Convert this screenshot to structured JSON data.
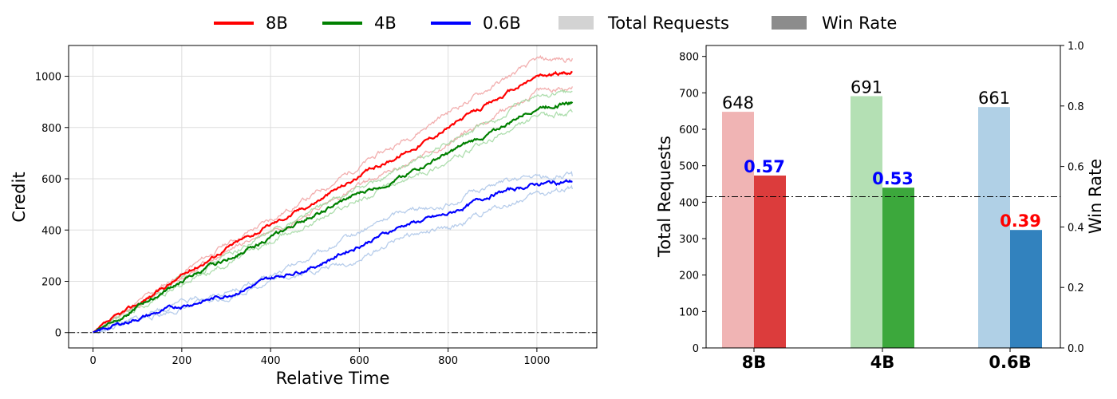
{
  "legend": {
    "placement": "top-center",
    "items": [
      {
        "label": "8B",
        "kind": "line",
        "color": "#ff0000"
      },
      {
        "label": "4B",
        "kind": "line",
        "color": "#008000"
      },
      {
        "label": "0.6B",
        "kind": "line",
        "color": "#0000ff"
      },
      {
        "label": "Total Requests",
        "kind": "patch",
        "color": "#d3d3d3"
      },
      {
        "label": "Win Rate",
        "kind": "patch",
        "color": "#8c8c8c"
      }
    ]
  },
  "chart_data": [
    {
      "type": "line",
      "xlabel": "Relative Time",
      "ylabel": "Credit",
      "xlim": [
        -55,
        1135
      ],
      "ylim": [
        -60,
        1120
      ],
      "xticks": [
        "0",
        "200",
        "400",
        "600",
        "800",
        "1000"
      ],
      "yticks": [
        "0",
        "200",
        "400",
        "600",
        "800",
        "1000"
      ],
      "grid": true,
      "reference_line": {
        "y": 0,
        "style": "dash-dot"
      },
      "series": [
        {
          "name": "8B",
          "color": "#ff0000",
          "band_color": "#f0a0a0",
          "x": [
            0,
            100,
            200,
            300,
            400,
            500,
            600,
            700,
            800,
            900,
            1000,
            1080
          ],
          "mean": [
            0,
            110,
            220,
            330,
            420,
            510,
            610,
            700,
            800,
            900,
            1000,
            1015
          ],
          "upper": [
            0,
            115,
            230,
            345,
            440,
            540,
            650,
            750,
            860,
            960,
            1060,
            1070
          ],
          "lower": [
            0,
            105,
            210,
            315,
            400,
            480,
            570,
            650,
            740,
            840,
            940,
            960
          ]
        },
        {
          "name": "4B",
          "color": "#008000",
          "band_color": "#a0d8a0",
          "x": [
            0,
            100,
            200,
            300,
            400,
            500,
            600,
            700,
            800,
            900,
            1000,
            1080
          ],
          "mean": [
            0,
            100,
            200,
            285,
            370,
            460,
            540,
            610,
            700,
            780,
            880,
            900
          ],
          "upper": [
            0,
            105,
            210,
            300,
            390,
            480,
            560,
            640,
            740,
            820,
            920,
            940
          ],
          "lower": [
            0,
            95,
            190,
            270,
            350,
            440,
            520,
            590,
            670,
            750,
            840,
            860
          ]
        },
        {
          "name": "0.6B",
          "color": "#0000ff",
          "band_color": "#aac4e8",
          "x": [
            0,
            100,
            200,
            300,
            400,
            500,
            600,
            700,
            800,
            900,
            1000,
            1080
          ],
          "mean": [
            0,
            55,
            105,
            145,
            210,
            260,
            340,
            420,
            460,
            540,
            580,
            590
          ],
          "upper": [
            0,
            60,
            115,
            160,
            215,
            300,
            390,
            480,
            500,
            580,
            605,
            610
          ],
          "lower": [
            0,
            50,
            95,
            135,
            205,
            245,
            280,
            380,
            400,
            480,
            540,
            560
          ]
        }
      ]
    },
    {
      "type": "bar",
      "categories": [
        "8B",
        "4B",
        "0.6B"
      ],
      "ylabel": "Total Requests",
      "ylim": [
        0,
        830
      ],
      "yticks": [
        "0",
        "100",
        "200",
        "300",
        "400",
        "500",
        "600",
        "700",
        "800"
      ],
      "y2label": "Win Rate",
      "y2lim": [
        0,
        1.0
      ],
      "y2ticks": [
        "0.0",
        "0.2",
        "0.4",
        "0.6",
        "0.8",
        "1.0"
      ],
      "reference_line": {
        "y2": 0.5,
        "style": "dash-dot"
      },
      "series": [
        {
          "name": "Total Requests",
          "axis": "left",
          "values": [
            648,
            691,
            661
          ],
          "labels": [
            "648",
            "691",
            "661"
          ],
          "colors": [
            "#f0b4b4",
            "#b4e0b4",
            "#b0d0e6"
          ]
        },
        {
          "name": "Win Rate",
          "axis": "right",
          "values": [
            0.57,
            0.53,
            0.39
          ],
          "labels": [
            "0.57",
            "0.53",
            "0.39"
          ],
          "colors": [
            "#dc3c3c",
            "#3ca83c",
            "#3282be"
          ],
          "label_colors": [
            "#0000ff",
            "#0000ff",
            "#ff0000"
          ]
        }
      ]
    }
  ]
}
